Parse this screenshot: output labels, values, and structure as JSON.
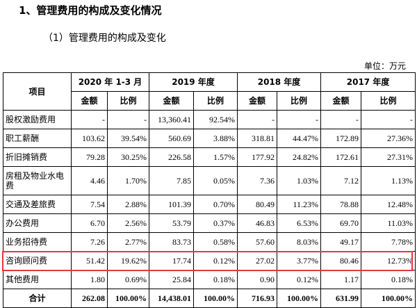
{
  "heading": "1、管理费用的构成及变化情况",
  "subheading": "（1）管理费用的构成及变化",
  "unit": "单位：万元",
  "table": {
    "item_header": "项目",
    "periods": [
      "2020 年 1-3 月",
      "2019 年度",
      "2018 年度",
      "2017 年度"
    ],
    "sub_headers": [
      "金额",
      "比例"
    ],
    "rows": [
      {
        "label": "股权激励费用",
        "cells": [
          "-",
          "-",
          "13,360.41",
          "92.54%",
          "-",
          "-",
          "-",
          "-"
        ]
      },
      {
        "label": "职工薪酬",
        "cells": [
          "103.62",
          "39.54%",
          "560.69",
          "3.88%",
          "318.81",
          "44.47%",
          "172.89",
          "27.36%"
        ]
      },
      {
        "label": "折旧摊销费",
        "cells": [
          "79.28",
          "30.25%",
          "226.58",
          "1.57%",
          "177.92",
          "24.82%",
          "172.61",
          "27.31%"
        ]
      },
      {
        "label": "房租及物业水电费",
        "cells": [
          "4.46",
          "1.70%",
          "7.85",
          "0.05%",
          "7.36",
          "1.03%",
          "7.12",
          "1.13%"
        ]
      },
      {
        "label": "交通及差旅费",
        "cells": [
          "7.54",
          "2.88%",
          "101.39",
          "0.70%",
          "80.49",
          "11.23%",
          "78.88",
          "12.48%"
        ]
      },
      {
        "label": "办公费用",
        "cells": [
          "6.70",
          "2.56%",
          "53.79",
          "0.37%",
          "46.83",
          "6.53%",
          "69.70",
          "11.03%"
        ]
      },
      {
        "label": "业务招待费",
        "cells": [
          "7.26",
          "2.77%",
          "83.73",
          "0.58%",
          "57.60",
          "8.03%",
          "49.17",
          "7.78%"
        ]
      },
      {
        "label": "咨询顾问费",
        "cells": [
          "51.42",
          "19.62%",
          "17.74",
          "0.12%",
          "27.02",
          "3.77%",
          "80.46",
          "12.73%"
        ]
      },
      {
        "label": "其他费用",
        "cells": [
          "1.80",
          "0.69%",
          "25.84",
          "0.18%",
          "0.90",
          "0.12%",
          "1.17",
          "0.18%"
        ]
      }
    ],
    "total": {
      "label": "合计",
      "cells": [
        "262.08",
        "100.00%",
        "14,438.01",
        "100.00%",
        "716.93",
        "100.00%",
        "631.99",
        "100.00%"
      ]
    },
    "highlight_row": "咨询顾问费",
    "highlight_color": "#e0383e"
  }
}
